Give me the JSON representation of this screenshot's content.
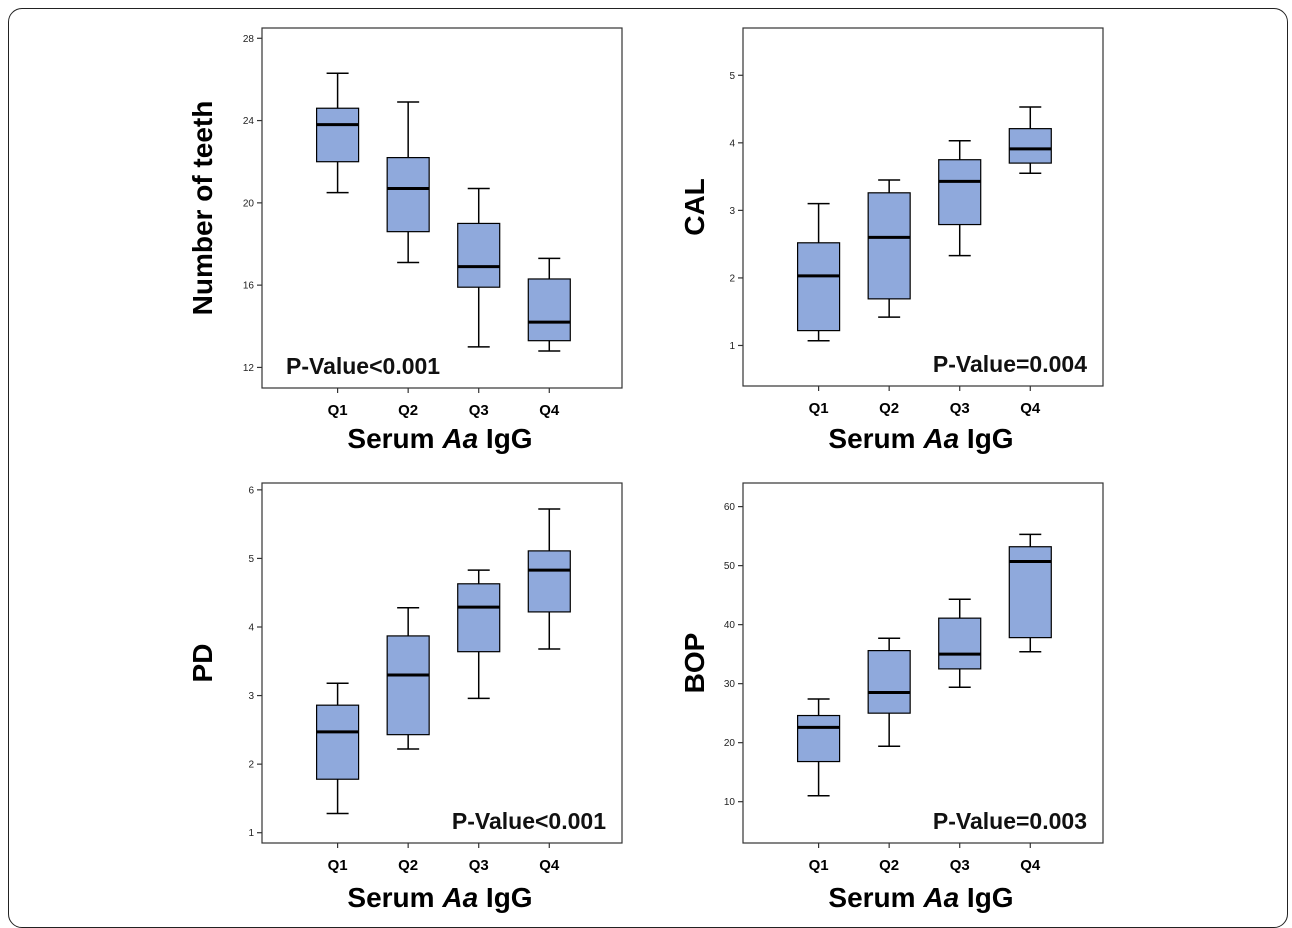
{
  "chart_data": [
    {
      "type": "box",
      "xlabel_prefix": "Serum ",
      "xlabel_italic": "Aa",
      "xlabel_suffix": " IgG",
      "ylabel": "Number of teeth",
      "categories": [
        "Q1",
        "Q2",
        "Q3",
        "Q4"
      ],
      "yticks": [
        12,
        16,
        20,
        24,
        28
      ],
      "ylim": [
        11,
        28.5
      ],
      "boxes": [
        {
          "category": "Q1",
          "min": 20.5,
          "q1": 22.0,
          "median": 23.8,
          "q3": 24.6,
          "max": 26.3
        },
        {
          "category": "Q2",
          "min": 17.1,
          "q1": 18.6,
          "median": 20.7,
          "q3": 22.2,
          "max": 24.9
        },
        {
          "category": "Q3",
          "min": 13.0,
          "q1": 15.9,
          "median": 16.9,
          "q3": 19.0,
          "max": 20.7
        },
        {
          "category": "Q4",
          "min": 12.8,
          "q1": 13.3,
          "median": 14.2,
          "q3": 16.3,
          "max": 17.3
        }
      ],
      "annotation": "P-Value<0.001",
      "annotation_position": "bottom-left"
    },
    {
      "type": "box",
      "xlabel_prefix": "Serum ",
      "xlabel_italic": "Aa",
      "xlabel_suffix": " IgG",
      "ylabel": "CAL",
      "categories": [
        "Q1",
        "Q2",
        "Q3",
        "Q4"
      ],
      "yticks": [
        1,
        2,
        3,
        4,
        5
      ],
      "ylim": [
        0.4,
        5.7
      ],
      "boxes": [
        {
          "category": "Q1",
          "min": 1.07,
          "q1": 1.22,
          "median": 2.03,
          "q3": 2.52,
          "max": 3.1
        },
        {
          "category": "Q2",
          "min": 1.42,
          "q1": 1.69,
          "median": 2.6,
          "q3": 3.26,
          "max": 3.45
        },
        {
          "category": "Q3",
          "min": 2.33,
          "q1": 2.79,
          "median": 3.43,
          "q3": 3.75,
          "max": 4.03
        },
        {
          "category": "Q4",
          "min": 3.55,
          "q1": 3.7,
          "median": 3.91,
          "q3": 4.21,
          "max": 4.53
        }
      ],
      "annotation": "P-Value=0.004",
      "annotation_position": "bottom-right"
    },
    {
      "type": "box",
      "xlabel_prefix": "Serum ",
      "xlabel_italic": "Aa",
      "xlabel_suffix": " IgG",
      "ylabel": "PD",
      "categories": [
        "Q1",
        "Q2",
        "Q3",
        "Q4"
      ],
      "yticks": [
        1,
        2,
        3,
        4,
        5,
        6
      ],
      "ylim": [
        0.85,
        6.1
      ],
      "boxes": [
        {
          "category": "Q1",
          "min": 1.28,
          "q1": 1.78,
          "median": 2.47,
          "q3": 2.86,
          "max": 3.18
        },
        {
          "category": "Q2",
          "min": 2.22,
          "q1": 2.43,
          "median": 3.3,
          "q3": 3.87,
          "max": 4.28
        },
        {
          "category": "Q3",
          "min": 2.96,
          "q1": 3.64,
          "median": 4.29,
          "q3": 4.63,
          "max": 4.83
        },
        {
          "category": "Q4",
          "min": 3.68,
          "q1": 4.22,
          "median": 4.83,
          "q3": 5.11,
          "max": 5.72
        }
      ],
      "annotation": "P-Value<0.001",
      "annotation_position": "bottom-right"
    },
    {
      "type": "box",
      "xlabel_prefix": "Serum ",
      "xlabel_italic": "Aa",
      "xlabel_suffix": " IgG",
      "ylabel": "BOP",
      "categories": [
        "Q1",
        "Q2",
        "Q3",
        "Q4"
      ],
      "yticks": [
        10,
        20,
        30,
        40,
        50,
        60
      ],
      "ylim": [
        3,
        64
      ],
      "boxes": [
        {
          "category": "Q1",
          "min": 11.0,
          "q1": 16.8,
          "median": 22.6,
          "q3": 24.6,
          "max": 27.4
        },
        {
          "category": "Q2",
          "min": 19.4,
          "q1": 25.0,
          "median": 28.5,
          "q3": 35.6,
          "max": 37.7
        },
        {
          "category": "Q3",
          "min": 29.4,
          "q1": 32.5,
          "median": 35.0,
          "q3": 41.1,
          "max": 44.3
        },
        {
          "category": "Q4",
          "min": 35.4,
          "q1": 37.8,
          "median": 50.7,
          "q3": 53.2,
          "max": 55.3
        }
      ],
      "annotation": "P-Value=0.003",
      "annotation_position": "bottom-right"
    }
  ],
  "colors": {
    "box_fill": "#8fa9dc",
    "line": "#000000",
    "axis": "#333333"
  }
}
